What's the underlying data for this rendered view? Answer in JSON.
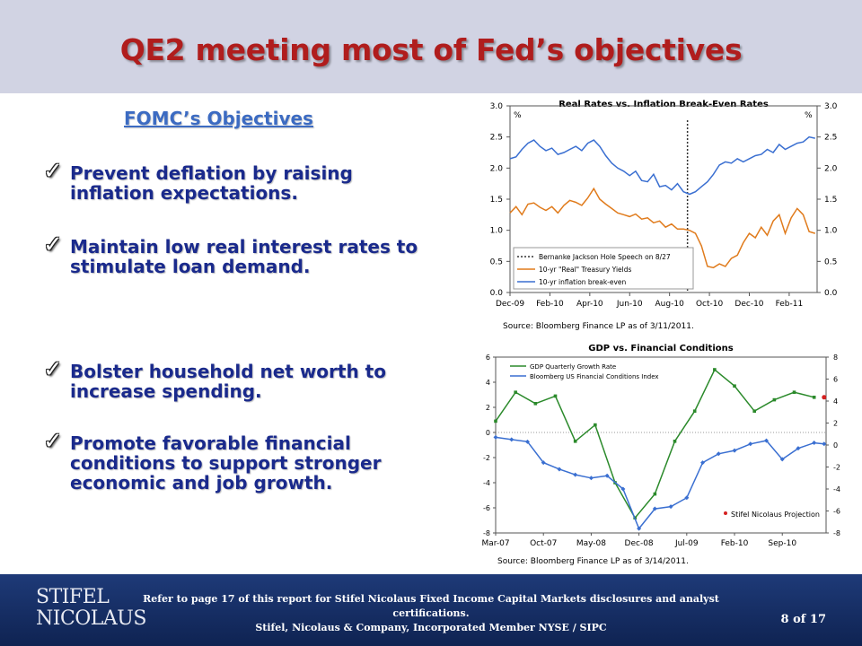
{
  "slide": {
    "title": "QE2 meeting most of Fed’s objectives",
    "objectives_heading": "FOMC’s Objectives",
    "check_glyph": "✓",
    "objectives": [
      "Prevent deflation by raising inflation expectations.",
      "Maintain low real interest rates to stimulate loan demand.",
      "Bolster household net worth to increase spending.",
      "Promote favorable financial conditions to support stronger economic and job growth."
    ]
  },
  "footer": {
    "logo_line1": "STIFEL",
    "logo_line2": "NICOLAUS",
    "disclosure_line1": "Refer to page 17 of this report for Stifel Nicolaus Fixed Income Capital Markets disclosures and analyst certifications.",
    "disclosure_line2": "Stifel, Nicolaus & Company, Incorporated  Member NYSE / SIPC",
    "page_label": "8 of  17"
  },
  "chart_data": [
    {
      "type": "line",
      "title": "Real Rates vs. Inflation Break-Even Rates",
      "left_unit": "%",
      "right_unit": "%",
      "source": "Source: Bloomberg Finance LP as of 3/11/2011.",
      "x_tick_labels": [
        "Dec-09",
        "Feb-10",
        "Apr-10",
        "Jun-10",
        "Aug-10",
        "Oct-10",
        "Dec-10",
        "Feb-11"
      ],
      "x_range": [
        0,
        15.4
      ],
      "y_range": [
        0,
        3.0
      ],
      "y_ticks": [
        0.0,
        0.5,
        1.0,
        1.5,
        2.0,
        2.5,
        3.0
      ],
      "y_tick_labels": [
        "0.0",
        "0.5",
        "1.0",
        "1.5",
        "2.0",
        "2.5",
        "3.0"
      ],
      "vline_x": 8.9,
      "legend_position": "bottom-left",
      "legend": [
        "Bernanke Jackson Hole Speech on 8/27",
        "10-yr \"Real\" Treasury Yields",
        "10-yr inflation break-even"
      ],
      "colors": {
        "real": "#e07b1c",
        "breakeven": "#3a6fd1",
        "vline": "#333333"
      },
      "series": [
        {
          "name": "10-yr \"Real\" Treasury Yields",
          "x": [
            0,
            0.3,
            0.6,
            0.9,
            1.2,
            1.5,
            1.8,
            2.1,
            2.4,
            2.7,
            3.0,
            3.3,
            3.6,
            3.9,
            4.2,
            4.5,
            4.8,
            5.1,
            5.4,
            5.7,
            6.0,
            6.3,
            6.6,
            6.9,
            7.2,
            7.5,
            7.8,
            8.1,
            8.4,
            8.7,
            9.0,
            9.3,
            9.6,
            9.9,
            10.2,
            10.5,
            10.8,
            11.1,
            11.4,
            11.7,
            12.0,
            12.3,
            12.6,
            12.9,
            13.2,
            13.5,
            13.8,
            14.1,
            14.4,
            14.7,
            15.0,
            15.3
          ],
          "y": [
            1.28,
            1.38,
            1.25,
            1.42,
            1.44,
            1.37,
            1.32,
            1.38,
            1.28,
            1.4,
            1.48,
            1.45,
            1.4,
            1.52,
            1.67,
            1.5,
            1.42,
            1.35,
            1.28,
            1.25,
            1.22,
            1.26,
            1.18,
            1.2,
            1.12,
            1.15,
            1.05,
            1.1,
            1.02,
            1.02,
            1.0,
            0.95,
            0.75,
            0.42,
            0.4,
            0.46,
            0.42,
            0.55,
            0.6,
            0.8,
            0.95,
            0.88,
            1.05,
            0.92,
            1.15,
            1.25,
            0.95,
            1.2,
            1.35,
            1.25,
            0.98,
            0.95
          ]
        },
        {
          "name": "10-yr inflation break-even",
          "x": [
            0,
            0.3,
            0.6,
            0.9,
            1.2,
            1.5,
            1.8,
            2.1,
            2.4,
            2.7,
            3.0,
            3.3,
            3.6,
            3.9,
            4.2,
            4.5,
            4.8,
            5.1,
            5.4,
            5.7,
            6.0,
            6.3,
            6.6,
            6.9,
            7.2,
            7.5,
            7.8,
            8.1,
            8.4,
            8.7,
            9.0,
            9.3,
            9.6,
            9.9,
            10.2,
            10.5,
            10.8,
            11.1,
            11.4,
            11.7,
            12.0,
            12.3,
            12.6,
            12.9,
            13.2,
            13.5,
            13.8,
            14.1,
            14.4,
            14.7,
            15.0,
            15.3
          ],
          "y": [
            2.15,
            2.18,
            2.3,
            2.4,
            2.45,
            2.35,
            2.28,
            2.32,
            2.22,
            2.25,
            2.3,
            2.35,
            2.28,
            2.4,
            2.45,
            2.35,
            2.2,
            2.08,
            2.0,
            1.95,
            1.88,
            1.95,
            1.8,
            1.78,
            1.9,
            1.7,
            1.72,
            1.65,
            1.75,
            1.62,
            1.58,
            1.62,
            1.7,
            1.78,
            1.9,
            2.05,
            2.1,
            2.08,
            2.15,
            2.1,
            2.15,
            2.2,
            2.22,
            2.3,
            2.25,
            2.38,
            2.3,
            2.35,
            2.4,
            2.42,
            2.5,
            2.48
          ]
        }
      ]
    },
    {
      "type": "line",
      "title": "GDP vs. Financial Conditions",
      "source": "Source: Bloomberg Finance LP as of 3/14/2011.",
      "x_tick_labels": [
        "Mar-07",
        "Oct-07",
        "May-08",
        "Dec-08",
        "Jul-09",
        "Feb-10",
        "Sep-10"
      ],
      "x_range": [
        0,
        16.6
      ],
      "y_left_range": [
        -8,
        6
      ],
      "y_left_ticks": [
        -8,
        -6,
        -4,
        -2,
        0,
        2,
        4,
        6
      ],
      "y_right_range": [
        -8,
        8
      ],
      "y_right_ticks": [
        -8,
        -6,
        -4,
        -2,
        0,
        2,
        4,
        6,
        8
      ],
      "legend_position": "top-left",
      "legend": [
        "GDP Quarterly Growth Rate",
        "Bloomberg US Financial Conditions Index"
      ],
      "projection_label": "Stifel Nicolaus Projection",
      "colors": {
        "gdp": "#2b8a2b",
        "fci": "#3a6fd1",
        "projection": "#d42020",
        "zero": "#999999"
      },
      "series": [
        {
          "name": "GDP Quarterly Growth Rate",
          "axis": "left",
          "x": [
            0,
            1,
            2,
            3,
            4,
            5,
            6,
            7,
            8,
            9,
            10,
            11,
            12,
            13,
            14,
            15,
            16
          ],
          "y": [
            0.9,
            3.2,
            2.3,
            2.9,
            -0.7,
            0.6,
            -4.0,
            -6.8,
            -4.9,
            -0.7,
            1.7,
            5.0,
            3.7,
            1.7,
            2.6,
            3.2,
            2.8
          ]
        },
        {
          "name": "Bloomberg US Financial Conditions Index",
          "axis": "right",
          "x": [
            0,
            0.8,
            1.6,
            2.4,
            3.2,
            4.0,
            4.8,
            5.6,
            6.4,
            7.2,
            8.0,
            8.8,
            9.6,
            10.4,
            11.2,
            12.0,
            12.8,
            13.6,
            14.4,
            15.2,
            16.0,
            16.5
          ],
          "y": [
            0.7,
            0.5,
            0.3,
            -1.6,
            -2.2,
            -2.7,
            -3.0,
            -2.8,
            -4.0,
            -7.6,
            -5.8,
            -5.6,
            -4.8,
            -1.6,
            -0.8,
            -0.5,
            0.1,
            0.4,
            -1.3,
            -0.3,
            0.2,
            0.1
          ]
        }
      ],
      "projection_point": {
        "x": 16.5,
        "y": 2.8
      }
    }
  ]
}
